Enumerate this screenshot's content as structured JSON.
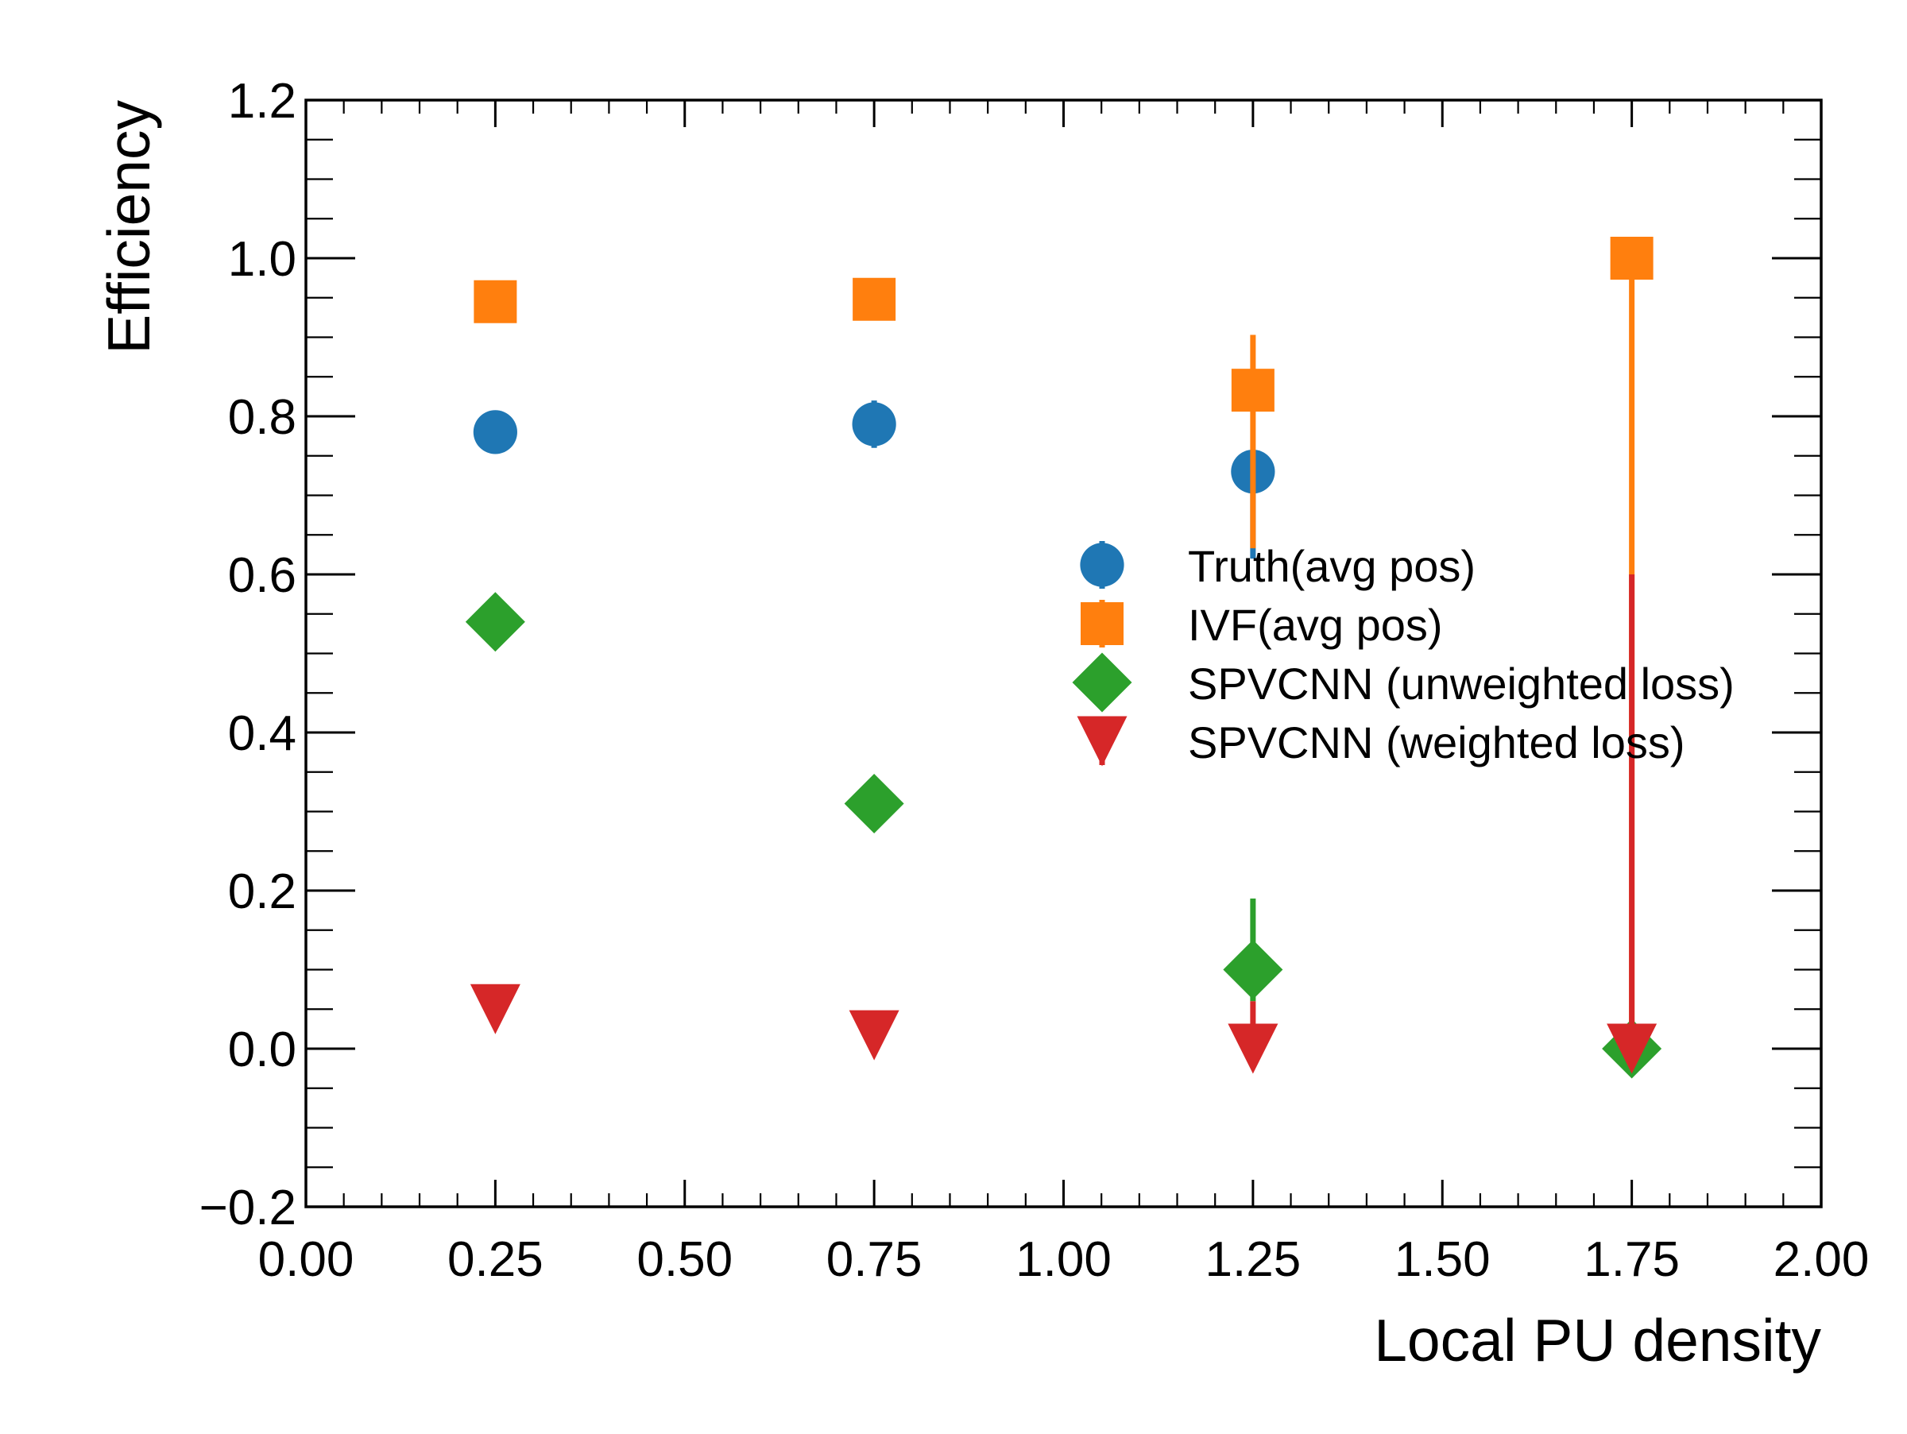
{
  "chart_data": {
    "type": "scatter",
    "xlabel": "Local PU density",
    "ylabel": "Efficiency",
    "xlim": [
      0.0,
      2.0
    ],
    "ylim": [
      -0.2,
      1.2
    ],
    "x_ticks": [
      "0.00",
      "0.25",
      "0.50",
      "0.75",
      "1.00",
      "1.25",
      "1.50",
      "1.75",
      "2.00"
    ],
    "y_ticks": [
      "−0.2",
      "0.0",
      "0.2",
      "0.4",
      "0.6",
      "0.8",
      "1.0",
      "1.2"
    ],
    "legend_position": "center-right",
    "grid": false,
    "series": [
      {
        "name": "Truth(avg pos)",
        "marker": "circle",
        "color": "#1f77b4",
        "x": [
          0.25,
          0.75,
          1.25
        ],
        "y": [
          0.78,
          0.79,
          0.73
        ],
        "err_low": [
          0.008,
          0.03,
          0.11
        ],
        "err_high": [
          0.008,
          0.03,
          0.0
        ]
      },
      {
        "name": "IVF(avg pos)",
        "marker": "square",
        "color": "#ff7f0e",
        "x": [
          0.25,
          0.75,
          1.25,
          1.75
        ],
        "y": [
          0.945,
          0.948,
          0.833,
          1.0
        ],
        "err_low": [
          0.008,
          0.01,
          0.2,
          1.0
        ],
        "err_high": [
          0.008,
          0.01,
          0.07,
          0.0
        ]
      },
      {
        "name": "SPVCNN (unweighted loss)",
        "marker": "diamond",
        "color": "#2ca02c",
        "x": [
          0.25,
          0.75,
          1.25,
          1.75
        ],
        "y": [
          0.54,
          0.31,
          0.1,
          0.0
        ],
        "err_low": [
          0.01,
          0.03,
          0.04,
          0.0
        ],
        "err_high": [
          0.01,
          0.03,
          0.09,
          0.0
        ]
      },
      {
        "name": "SPVCNN (weighted loss)",
        "marker": "triangle-down",
        "color": "#d62728",
        "x": [
          0.25,
          0.75,
          1.25,
          1.75
        ],
        "y": [
          0.05,
          0.017,
          0.0,
          0.0
        ],
        "err_low": [
          0.006,
          0.006,
          0.0,
          0.0
        ],
        "err_high": [
          0.006,
          0.006,
          0.06,
          0.6
        ]
      }
    ]
  }
}
